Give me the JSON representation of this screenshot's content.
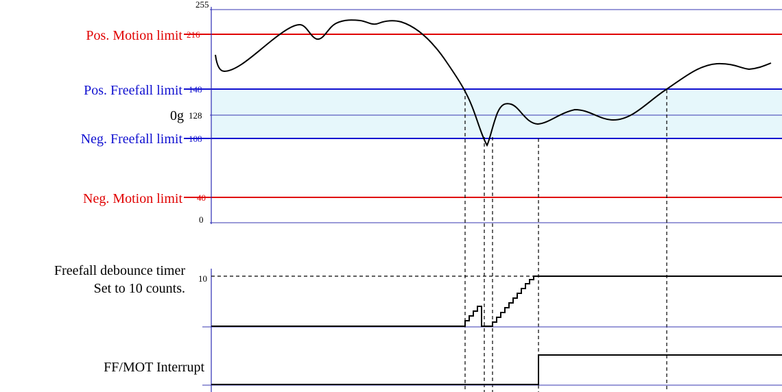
{
  "accel_plot": {
    "tick_255": "255",
    "tick_216": "216",
    "tick_148": "148",
    "tick_128": "128",
    "tick_108": "108",
    "tick_40": "40",
    "tick_0": "0",
    "pos_motion_label": "Pos. Motion limit",
    "pos_freefall_label": "Pos. Freefall limit",
    "zero_g_label": "0g",
    "neg_freefall_label": "Neg. Freefall limit",
    "neg_motion_label": "Neg. Motion limit"
  },
  "debounce_plot": {
    "label_line1": "Freefall debounce timer",
    "label_line2": "Set to 10 counts.",
    "tick_10": "10"
  },
  "interrupt_plot": {
    "label": "FF/MOT Interrupt"
  },
  "colors": {
    "motion_limit": "#e00000",
    "freefall_limit": "#1010d0",
    "freefall_band": "#e6f7fb",
    "axis": "#2b2bb5",
    "signal": "#000000"
  }
}
